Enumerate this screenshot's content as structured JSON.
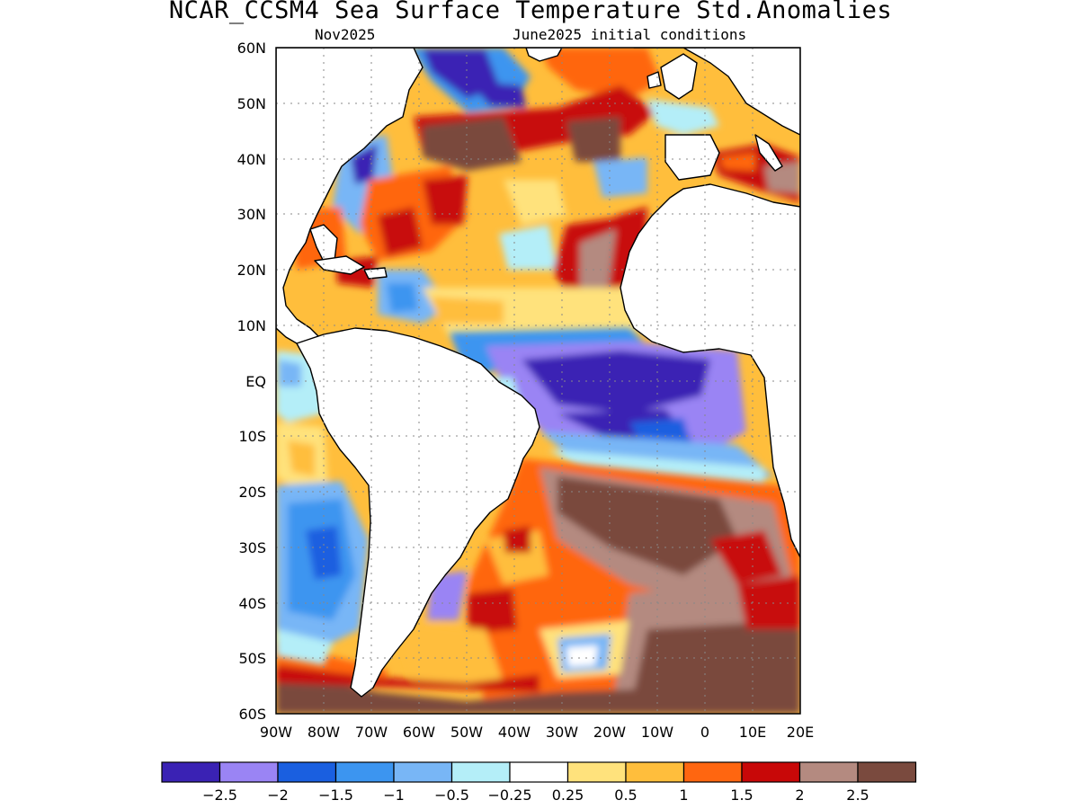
{
  "title": "NCAR_CCSM4 Sea Surface Temperature Std.Anomalies",
  "subtitle_left": "Nov2025",
  "subtitle_right": "June2025 initial conditions",
  "map": {
    "lat_labels": [
      "60N",
      "50N",
      "40N",
      "30N",
      "20N",
      "10N",
      "EQ",
      "10S",
      "20S",
      "30S",
      "40S",
      "50S",
      "60S"
    ],
    "lon_labels": [
      "90W",
      "80W",
      "70W",
      "60W",
      "50W",
      "40W",
      "30W",
      "20W",
      "10W",
      "0",
      "10E",
      "20E"
    ],
    "grid": true
  },
  "colorbar": {
    "colors": [
      "#3a22b4",
      "#9a84f4",
      "#1a5fe0",
      "#3c95f0",
      "#78b6f6",
      "#b4eef8",
      "#ffffff",
      "#ffe27c",
      "#ffbe3c",
      "#ff6610",
      "#c80808",
      "#b48a80",
      "#7a4a3e"
    ],
    "labels": [
      "−2.5",
      "−2",
      "−1.5",
      "−1",
      "−0.5",
      "−0.25",
      "0.25",
      "0.5",
      "1",
      "1.5",
      "2",
      "2.5"
    ]
  },
  "legend_colors": {
    "land": "#ffffff",
    "coast": "#000000"
  }
}
